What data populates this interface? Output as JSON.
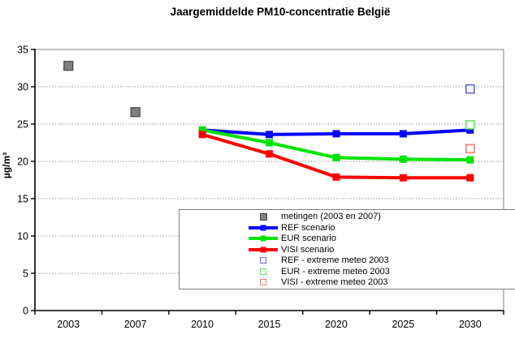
{
  "chart_data": {
    "type": "line",
    "title": "Jaargemiddelde PM10-concentratie België",
    "xlabel": "",
    "ylabel": "µg/m³",
    "categories": [
      "2003",
      "2007",
      "2010",
      "2015",
      "2020",
      "2025",
      "2030"
    ],
    "ylim": [
      0,
      35
    ],
    "ytick_step": 5,
    "yticks": [
      0,
      5,
      10,
      15,
      20,
      25,
      30,
      35
    ],
    "grid": "horizontal dotted gridlines at each 5 µg/m³",
    "legend_position": "inside bottom-right",
    "colors": {
      "measurement_gray": "#808080",
      "ref_blue": "#0000FF",
      "eur_green": "#00E300",
      "visi_red": "#FF0000",
      "ref_extreme_blue": "#6666DD",
      "eur_extreme_green": "#66E866",
      "visi_extreme_red": "#FF7777",
      "gridline": "#999999",
      "plot_border": "#808080"
    },
    "series": [
      {
        "name": "metingen (2003 en 2007)",
        "kind": "scatter",
        "marker": "filled-square",
        "color": "#808080",
        "edge": "#404040",
        "size": 11,
        "points": [
          [
            "2003",
            32.8
          ],
          [
            "2007",
            26.6
          ]
        ]
      },
      {
        "name": "REF scenario",
        "kind": "line",
        "marker": "filled-square",
        "color": "#0000FF",
        "size": 9,
        "points": [
          [
            "2010",
            24.2
          ],
          [
            "2015",
            23.6
          ],
          [
            "2020",
            23.7
          ],
          [
            "2025",
            23.7
          ],
          [
            "2030",
            24.2
          ]
        ]
      },
      {
        "name": "EUR scenario",
        "kind": "line",
        "marker": "filled-square",
        "color": "#00E300",
        "size": 9,
        "points": [
          [
            "2010",
            24.2
          ],
          [
            "2015",
            22.5
          ],
          [
            "2020",
            20.5
          ],
          [
            "2025",
            20.3
          ],
          [
            "2030",
            20.2
          ]
        ]
      },
      {
        "name": "VISI scenario",
        "kind": "line",
        "marker": "filled-square",
        "color": "#FF0000",
        "size": 9,
        "points": [
          [
            "2010",
            23.6
          ],
          [
            "2015",
            21.0
          ],
          [
            "2020",
            17.9
          ],
          [
            "2025",
            17.8
          ],
          [
            "2030",
            17.8
          ]
        ]
      },
      {
        "name": "REF - extreme meteo 2003",
        "kind": "scatter",
        "marker": "open-square",
        "color": "#6666DD",
        "size": 10,
        "points": [
          [
            "2030",
            29.7
          ]
        ]
      },
      {
        "name": "EUR - extreme meteo 2003",
        "kind": "scatter",
        "marker": "open-square",
        "color": "#66E866",
        "size": 10,
        "points": [
          [
            "2030",
            24.9
          ]
        ]
      },
      {
        "name": "VISI - extreme meteo 2003",
        "kind": "scatter",
        "marker": "open-square",
        "color": "#FF7777",
        "size": 10,
        "points": [
          [
            "2030",
            21.7
          ]
        ]
      }
    ]
  }
}
